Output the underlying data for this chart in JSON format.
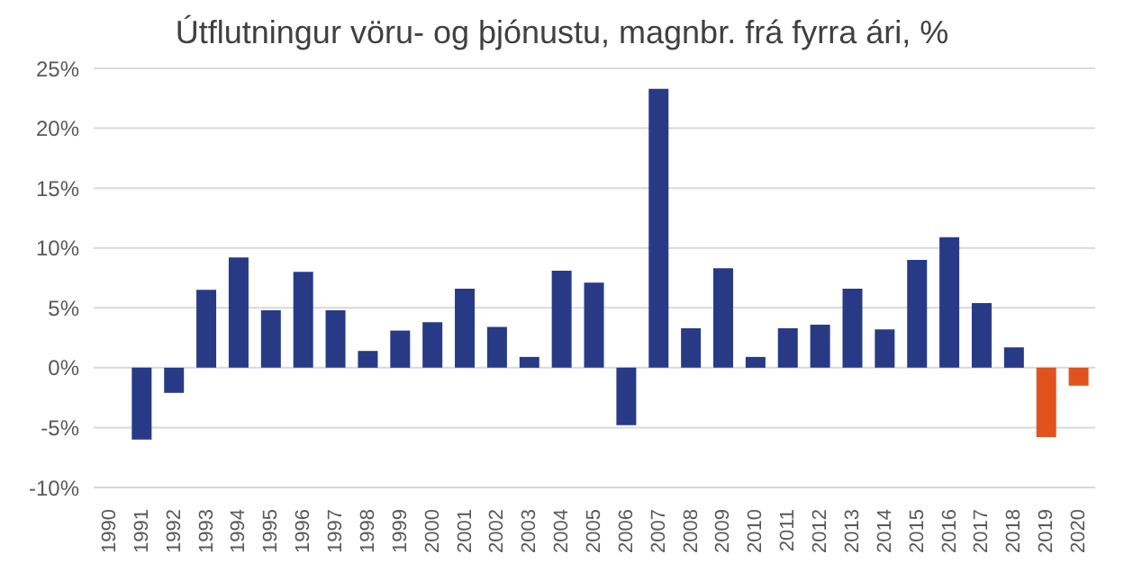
{
  "chart_data": {
    "type": "bar",
    "title": "Útflutningur vöru- og þjónustu, magnbr. frá fyrra ári, %",
    "categories": [
      "1990",
      "1991",
      "1992",
      "1993",
      "1994",
      "1995",
      "1996",
      "1997",
      "1998",
      "1999",
      "2000",
      "2001",
      "2002",
      "2003",
      "2004",
      "2005",
      "2006",
      "2007",
      "2008",
      "2009",
      "2010",
      "2011",
      "2012",
      "2013",
      "2014",
      "2015",
      "2016",
      "2017",
      "2018",
      "2019",
      "2020"
    ],
    "values": [
      null,
      -6.0,
      -2.1,
      6.5,
      9.2,
      4.8,
      8.0,
      4.8,
      1.4,
      3.1,
      3.8,
      6.6,
      3.4,
      0.9,
      8.1,
      7.1,
      -4.8,
      23.3,
      3.3,
      8.3,
      0.9,
      3.3,
      3.6,
      6.6,
      3.2,
      9.0,
      10.9,
      5.4,
      1.7,
      -5.8,
      -1.5
    ],
    "colors": [
      "#283a86",
      "#283a86",
      "#283a86",
      "#283a86",
      "#283a86",
      "#283a86",
      "#283a86",
      "#283a86",
      "#283a86",
      "#283a86",
      "#283a86",
      "#283a86",
      "#283a86",
      "#283a86",
      "#283a86",
      "#283a86",
      "#283a86",
      "#283a86",
      "#283a86",
      "#283a86",
      "#283a86",
      "#283a86",
      "#283a86",
      "#283a86",
      "#283a86",
      "#283a86",
      "#283a86",
      "#283a86",
      "#283a86",
      "#e0531f",
      "#e0531f"
    ],
    "ylim": [
      -10,
      25
    ],
    "yticks": [
      {
        "value": -10,
        "label": "-10%"
      },
      {
        "value": -5,
        "label": "-5%"
      },
      {
        "value": 0,
        "label": "0%"
      },
      {
        "value": 5,
        "label": "5%"
      },
      {
        "value": 10,
        "label": "10%"
      },
      {
        "value": 15,
        "label": "15%"
      },
      {
        "value": 20,
        "label": "20%"
      },
      {
        "value": 25,
        "label": "25%"
      }
    ],
    "grid": "y"
  }
}
